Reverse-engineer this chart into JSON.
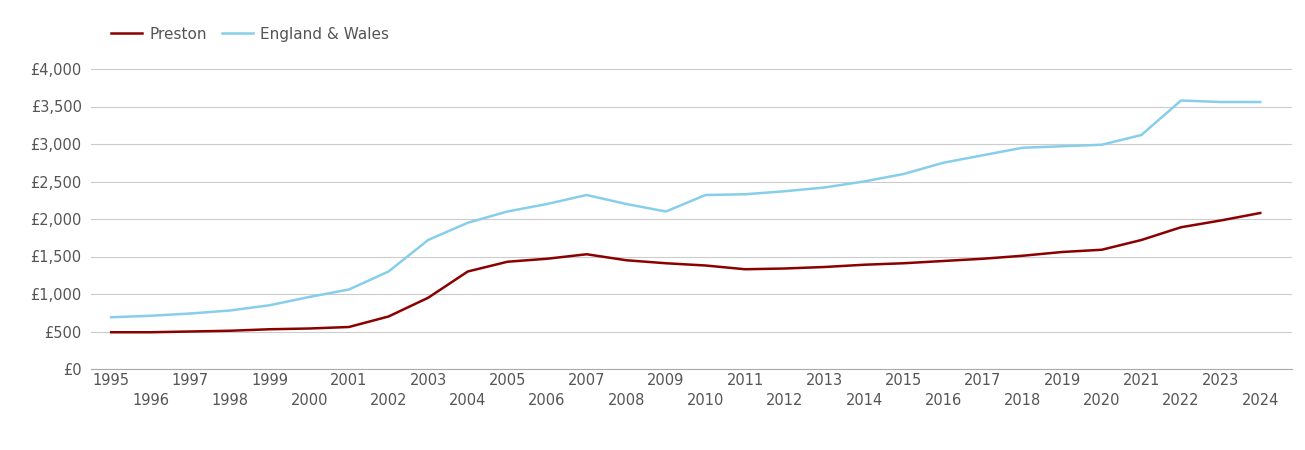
{
  "years": [
    1995,
    1996,
    1997,
    1998,
    1999,
    2000,
    2001,
    2002,
    2003,
    2004,
    2005,
    2006,
    2007,
    2008,
    2009,
    2010,
    2011,
    2012,
    2013,
    2014,
    2015,
    2016,
    2017,
    2018,
    2019,
    2020,
    2021,
    2022,
    2023,
    2024
  ],
  "preston": [
    490,
    490,
    500,
    510,
    530,
    540,
    560,
    700,
    950,
    1300,
    1430,
    1470,
    1530,
    1450,
    1410,
    1380,
    1330,
    1340,
    1360,
    1390,
    1410,
    1440,
    1470,
    1510,
    1560,
    1590,
    1720,
    1890,
    1980,
    2080
  ],
  "england_wales": [
    690,
    710,
    740,
    780,
    850,
    960,
    1060,
    1300,
    1720,
    1950,
    2100,
    2200,
    2320,
    2200,
    2100,
    2320,
    2330,
    2370,
    2420,
    2500,
    2600,
    2750,
    2850,
    2950,
    2970,
    2990,
    3120,
    3580,
    3560,
    3560
  ],
  "preston_color": "#8B0000",
  "england_wales_color": "#87CEEB",
  "line_width": 1.8,
  "ylim": [
    0,
    4200
  ],
  "yticks": [
    0,
    500,
    1000,
    1500,
    2000,
    2500,
    3000,
    3500,
    4000
  ],
  "ytick_labels": [
    "£0",
    "£500",
    "£1,000",
    "£1,500",
    "£2,000",
    "£2,500",
    "£3,000",
    "£3,500",
    "£4,000"
  ],
  "background_color": "#ffffff",
  "grid_color": "#cccccc",
  "legend_labels": [
    "Preston",
    "England & Wales"
  ],
  "tick_label_color": "#555555",
  "tick_label_fontsize": 10.5,
  "xlim_left": 1994.5,
  "xlim_right": 2024.8
}
